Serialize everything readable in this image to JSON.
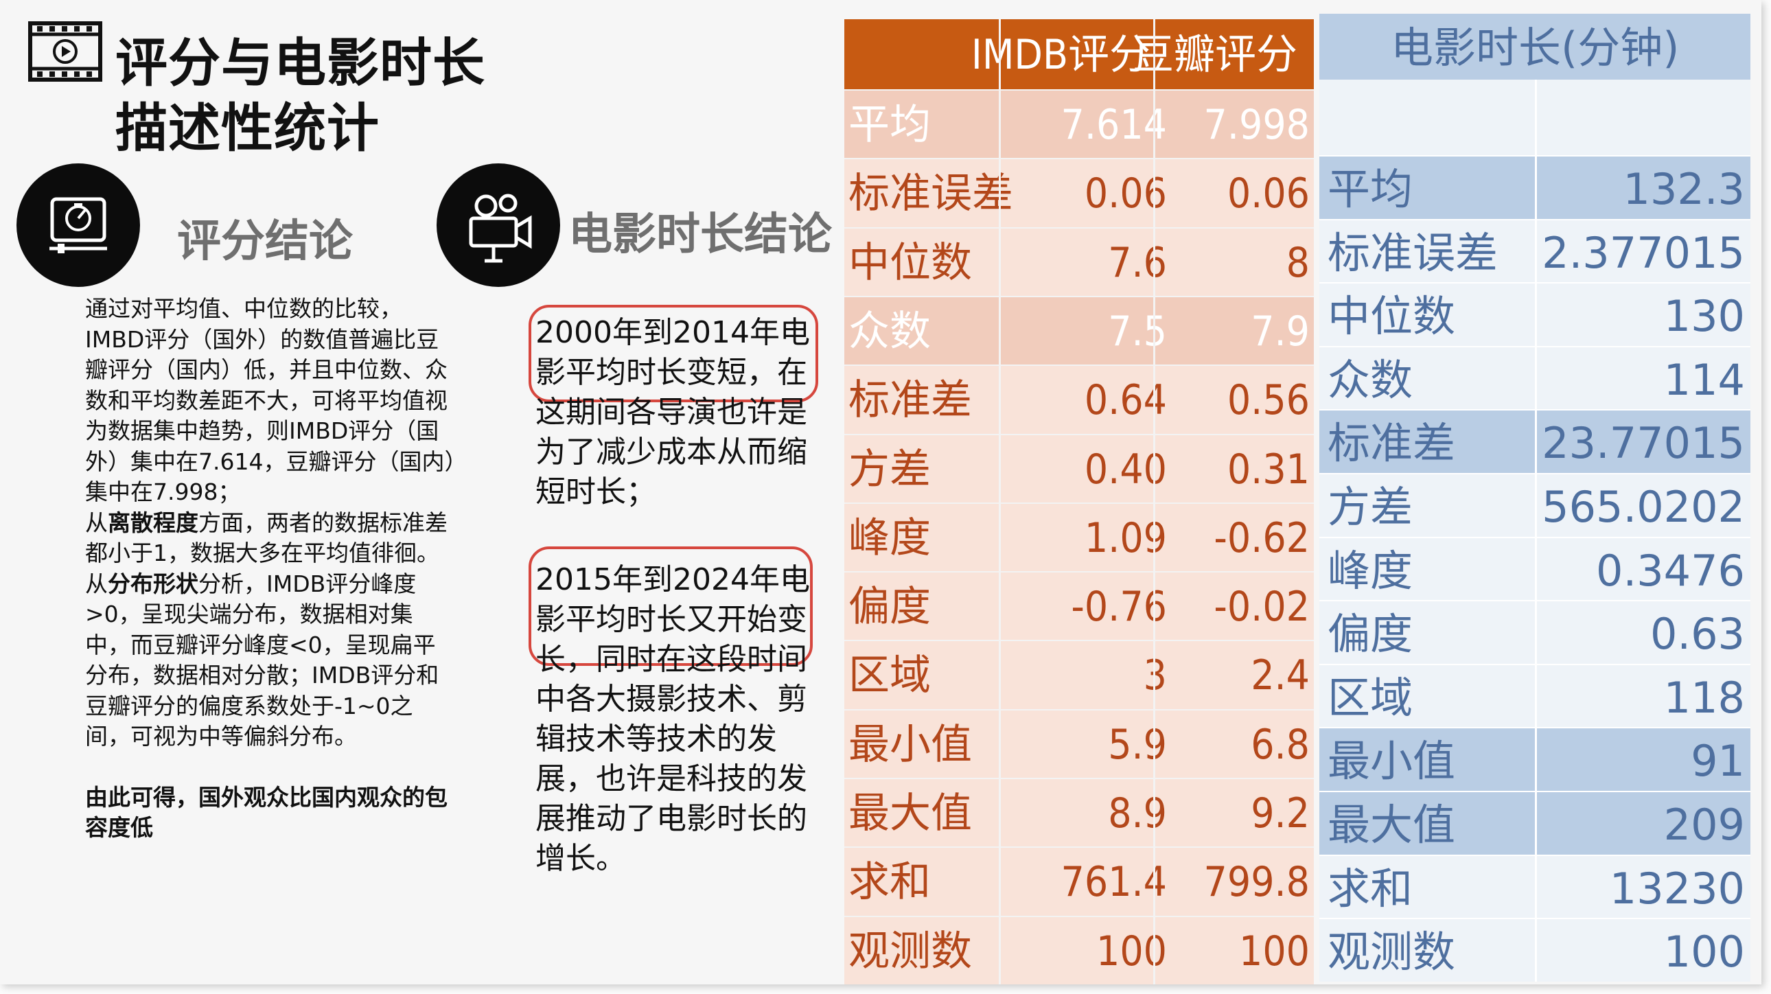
{
  "header": {
    "title_line1": "评分与电影时长",
    "title_line2": "描述性统计",
    "icon": "film-play-icon"
  },
  "sections": {
    "rating": {
      "title": "评分结论",
      "icon": "rating-meter-icon"
    },
    "duration": {
      "title": "电影时长结论",
      "icon": "movie-camera-icon"
    }
  },
  "rating_text": {
    "p1": "通过对平均值、中位数的比较，IMBD评分（国外）的数值普遍比豆瓣评分（国内）低，并且中位数、众数和平均数差距不大，可将平均值视为数据集中趋势，则IMBD评分（国外）集中在7.614，豆瓣评分（国内）集中在7.998；",
    "p2_pre": "从",
    "p2_bold": "离散程度",
    "p2_post": "方面，两者的数据标准差都小于1，数据大多在平均值徘徊。",
    "p3_pre": "从",
    "p3_bold": "分布形状",
    "p3_post": "分析，IMDB评分峰度>0，呈现尖端分布，数据相对集中，而豆瓣评分峰度<0，呈现扁平分布，数据相对分散；IMDB评分和豆瓣评分的偏度系数处于-1~0之间，可视为中等偏斜分布。",
    "conclusion": "由此可得，国外观众比国内观众的包容度低"
  },
  "duration_text": {
    "p1_highlight": "2000年到2014年电影平均时长变短，",
    "p1_rest": "在这期间各导演也许是为了减少成本从而缩短时长；",
    "p2_highlight": "2015年到2024年电影平均时长又开始变长，",
    "p2_rest": "同时在这段时间中各大摄影技术、剪辑技术等技术的发展，也许是科技的发展推动了电影时长的增长。"
  },
  "rating_table": {
    "headers": [
      "",
      "IMDB评分",
      "豆瓣评分"
    ],
    "rows": [
      {
        "label": "平均",
        "imdb": "7.614",
        "douban": "7.998"
      },
      {
        "label": "标准误差",
        "imdb": "0.06",
        "douban": "0.06"
      },
      {
        "label": "中位数",
        "imdb": "7.6",
        "douban": "8"
      },
      {
        "label": "众数",
        "imdb": "7.5",
        "douban": "7.9"
      },
      {
        "label": "标准差",
        "imdb": "0.64",
        "douban": "0.56"
      },
      {
        "label": "方差",
        "imdb": "0.40",
        "douban": "0.31"
      },
      {
        "label": "峰度",
        "imdb": "1.09",
        "douban": "-0.62"
      },
      {
        "label": "偏度",
        "imdb": "-0.76",
        "douban": "-0.02"
      },
      {
        "label": "区域",
        "imdb": "3",
        "douban": "2.4"
      },
      {
        "label": "最小值",
        "imdb": "5.9",
        "douban": "6.8"
      },
      {
        "label": "最大值",
        "imdb": "8.9",
        "douban": "9.2"
      },
      {
        "label": "求和",
        "imdb": "761.4",
        "douban": "799.8"
      },
      {
        "label": "观测数",
        "imdb": "100",
        "douban": "100"
      }
    ]
  },
  "duration_table": {
    "header": "电影时长(分钟)",
    "rows": [
      {
        "label": "平均",
        "value": "132.3"
      },
      {
        "label": "标准误差",
        "value": "2.377015"
      },
      {
        "label": "中位数",
        "value": "130"
      },
      {
        "label": "众数",
        "value": "114"
      },
      {
        "label": "标准差",
        "value": "23.77015"
      },
      {
        "label": "方差",
        "value": "565.0202"
      },
      {
        "label": "峰度",
        "value": "0.3476"
      },
      {
        "label": "偏度",
        "value": "0.63"
      },
      {
        "label": "区域",
        "value": "118"
      },
      {
        "label": "最小值",
        "value": "91"
      },
      {
        "label": "最大值",
        "value": "209"
      },
      {
        "label": "求和",
        "value": "13230"
      },
      {
        "label": "观测数",
        "value": "100"
      }
    ]
  },
  "colors": {
    "orange_header": "#c75a12",
    "orange_text": "#b3471a",
    "blue_header": "#b9cde4",
    "blue_text": "#4e6f9f",
    "highlight_oval": "#d6473e"
  }
}
